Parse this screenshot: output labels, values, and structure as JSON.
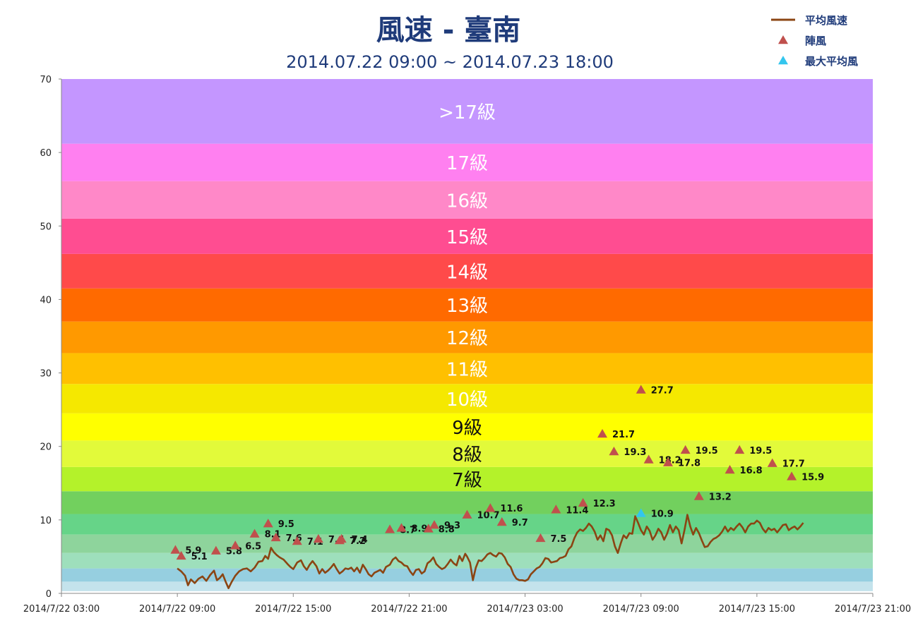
{
  "chart_data": {
    "type": "line",
    "title": "風速 - 臺南",
    "subtitle": "2014.07.22 09:00 ~ 2014.07.23 18:00",
    "xlabel": "",
    "ylabel": "",
    "ylim": [
      0,
      70
    ],
    "y_ticks": [
      0,
      10,
      20,
      30,
      40,
      50,
      60,
      70
    ],
    "x_range_hours": [
      0,
      42
    ],
    "x_ticks": [
      {
        "h": 0,
        "label": "2014/7/22 03:00"
      },
      {
        "h": 6,
        "label": "2014/7/22 09:00"
      },
      {
        "h": 12,
        "label": "2014/7/22 15:00"
      },
      {
        "h": 18,
        "label": "2014/7/22 21:00"
      },
      {
        "h": 24,
        "label": "2014/7/23 03:00"
      },
      {
        "h": 30,
        "label": "2014/7/23 09:00"
      },
      {
        "h": 36,
        "label": "2014/7/23 15:00"
      },
      {
        "h": 42,
        "label": "2014/7/23 21:00"
      }
    ],
    "bands": [
      {
        "from": 0,
        "to": 0.3,
        "color": "#ffffff",
        "label": ""
      },
      {
        "from": 0.3,
        "to": 1.6,
        "color": "#c4e3ec",
        "label": ""
      },
      {
        "from": 1.6,
        "to": 3.4,
        "color": "#96cfe0",
        "label": ""
      },
      {
        "from": 3.4,
        "to": 5.5,
        "color": "#9edfbc",
        "label": ""
      },
      {
        "from": 5.5,
        "to": 8.0,
        "color": "#8ed49c",
        "label": ""
      },
      {
        "from": 8.0,
        "to": 10.8,
        "color": "#66d488",
        "label": ""
      },
      {
        "from": 10.8,
        "to": 13.9,
        "color": "#72d05e",
        "label": ""
      },
      {
        "from": 13.9,
        "to": 17.2,
        "color": "#b4f22a",
        "label": "7級",
        "text_color": "#111111"
      },
      {
        "from": 17.2,
        "to": 20.8,
        "color": "#e2fa3a",
        "label": "8級",
        "text_color": "#111111"
      },
      {
        "from": 20.8,
        "to": 24.5,
        "color": "#ffff00",
        "label": "9級",
        "text_color": "#111111"
      },
      {
        "from": 24.5,
        "to": 28.5,
        "color": "#f5e800",
        "label": "10級",
        "text_color": "#ffffff"
      },
      {
        "from": 28.5,
        "to": 32.7,
        "color": "#ffc000",
        "label": "11級",
        "text_color": "#ffffff"
      },
      {
        "from": 32.7,
        "to": 37.0,
        "color": "#ff9900",
        "label": "12級",
        "text_color": "#ffffff"
      },
      {
        "from": 37.0,
        "to": 41.5,
        "color": "#ff6a00",
        "label": "13級",
        "text_color": "#ffffff"
      },
      {
        "from": 41.5,
        "to": 46.2,
        "color": "#ff4a4a",
        "label": "14級",
        "text_color": "#ffffff"
      },
      {
        "from": 46.2,
        "to": 51.0,
        "color": "#ff4d91",
        "label": "15級",
        "text_color": "#ffffff"
      },
      {
        "from": 51.0,
        "to": 56.1,
        "color": "#ff88c8",
        "label": "16級",
        "text_color": "#ffffff"
      },
      {
        "from": 56.1,
        "to": 61.2,
        "color": "#ff80f0",
        "label": "17級",
        "text_color": "#ffffff"
      },
      {
        "from": 61.2,
        "to": 70,
        "color": "#c496ff",
        "label": ">17級",
        "text_color": "#ffffff"
      }
    ],
    "legend": {
      "placement": "top-right",
      "entries": [
        {
          "name": "平均風速",
          "color": "#8b4513",
          "marker": "line"
        },
        {
          "name": "陣風",
          "color": "#c0504d",
          "marker": "triangle"
        },
        {
          "name": "最大平均風",
          "color": "#33c6ee",
          "marker": "triangle"
        }
      ]
    },
    "series": [
      {
        "name": "平均風速",
        "color": "#8b4513",
        "points": [
          [
            6.0,
            3.4
          ],
          [
            6.2,
            3.0
          ],
          [
            6.4,
            2.4
          ],
          [
            6.55,
            1.1
          ],
          [
            6.7,
            1.9
          ],
          [
            6.9,
            1.4
          ],
          [
            7.1,
            2.0
          ],
          [
            7.3,
            2.3
          ],
          [
            7.5,
            1.7
          ],
          [
            7.7,
            2.5
          ],
          [
            7.9,
            3.1
          ],
          [
            8.05,
            1.8
          ],
          [
            8.2,
            2.1
          ],
          [
            8.35,
            2.6
          ],
          [
            8.5,
            1.6
          ],
          [
            8.65,
            0.7
          ],
          [
            8.8,
            1.5
          ],
          [
            9.0,
            2.4
          ],
          [
            9.2,
            3.0
          ],
          [
            9.4,
            3.3
          ],
          [
            9.6,
            3.4
          ],
          [
            9.8,
            3.0
          ],
          [
            10.0,
            3.5
          ],
          [
            10.2,
            4.3
          ],
          [
            10.4,
            4.4
          ],
          [
            10.55,
            5.1
          ],
          [
            10.7,
            4.7
          ],
          [
            10.85,
            6.2
          ],
          [
            11.0,
            5.6
          ],
          [
            11.15,
            5.2
          ],
          [
            11.3,
            4.9
          ],
          [
            11.5,
            4.6
          ],
          [
            11.7,
            4.0
          ],
          [
            11.85,
            3.6
          ],
          [
            12.0,
            3.3
          ],
          [
            12.2,
            4.2
          ],
          [
            12.4,
            4.5
          ],
          [
            12.55,
            3.7
          ],
          [
            12.7,
            3.2
          ],
          [
            12.85,
            3.9
          ],
          [
            13.0,
            4.4
          ],
          [
            13.2,
            3.7
          ],
          [
            13.35,
            2.7
          ],
          [
            13.5,
            3.3
          ],
          [
            13.65,
            2.8
          ],
          [
            13.8,
            3.1
          ],
          [
            13.95,
            3.5
          ],
          [
            14.1,
            4.0
          ],
          [
            14.25,
            3.3
          ],
          [
            14.4,
            2.7
          ],
          [
            14.55,
            3.0
          ],
          [
            14.7,
            3.4
          ],
          [
            14.85,
            3.3
          ],
          [
            15.0,
            3.5
          ],
          [
            15.15,
            3.0
          ],
          [
            15.3,
            3.5
          ],
          [
            15.45,
            2.8
          ],
          [
            15.6,
            3.9
          ],
          [
            15.75,
            3.3
          ],
          [
            15.9,
            2.6
          ],
          [
            16.05,
            2.3
          ],
          [
            16.2,
            2.8
          ],
          [
            16.35,
            3.0
          ],
          [
            16.5,
            3.2
          ],
          [
            16.65,
            2.8
          ],
          [
            16.8,
            3.6
          ],
          [
            17.0,
            3.9
          ],
          [
            17.15,
            4.6
          ],
          [
            17.3,
            4.9
          ],
          [
            17.45,
            4.4
          ],
          [
            17.6,
            4.2
          ],
          [
            17.75,
            3.8
          ],
          [
            17.9,
            3.7
          ],
          [
            18.05,
            3.0
          ],
          [
            18.2,
            2.5
          ],
          [
            18.35,
            3.2
          ],
          [
            18.5,
            3.3
          ],
          [
            18.65,
            2.7
          ],
          [
            18.8,
            3.0
          ],
          [
            18.95,
            4.1
          ],
          [
            19.1,
            4.4
          ],
          [
            19.25,
            4.9
          ],
          [
            19.4,
            4.0
          ],
          [
            19.55,
            3.6
          ],
          [
            19.7,
            3.3
          ],
          [
            19.85,
            3.5
          ],
          [
            20.0,
            4.0
          ],
          [
            20.15,
            4.6
          ],
          [
            20.3,
            4.1
          ],
          [
            20.45,
            3.8
          ],
          [
            20.6,
            5.1
          ],
          [
            20.75,
            4.4
          ],
          [
            20.9,
            5.4
          ],
          [
            21.0,
            5.0
          ],
          [
            21.15,
            4.2
          ],
          [
            21.3,
            1.8
          ],
          [
            21.45,
            3.5
          ],
          [
            21.6,
            4.5
          ],
          [
            21.75,
            4.4
          ],
          [
            21.9,
            4.8
          ],
          [
            22.05,
            5.3
          ],
          [
            22.2,
            5.5
          ],
          [
            22.35,
            5.2
          ],
          [
            22.5,
            5.0
          ],
          [
            22.65,
            5.5
          ],
          [
            22.8,
            5.4
          ],
          [
            22.95,
            4.9
          ],
          [
            23.1,
            4.0
          ],
          [
            23.25,
            3.6
          ],
          [
            23.4,
            2.6
          ],
          [
            23.55,
            2.0
          ],
          [
            23.7,
            1.8
          ],
          [
            23.85,
            1.8
          ],
          [
            24.0,
            1.7
          ],
          [
            24.15,
            1.9
          ],
          [
            24.3,
            2.6
          ],
          [
            24.45,
            3.0
          ],
          [
            24.6,
            3.4
          ],
          [
            24.75,
            3.6
          ],
          [
            24.9,
            4.1
          ],
          [
            25.05,
            4.8
          ],
          [
            25.2,
            4.7
          ],
          [
            25.35,
            4.2
          ],
          [
            25.5,
            4.3
          ],
          [
            25.65,
            4.4
          ],
          [
            25.8,
            4.8
          ],
          [
            25.95,
            4.9
          ],
          [
            26.1,
            5.1
          ],
          [
            26.25,
            6.0
          ],
          [
            26.4,
            6.4
          ],
          [
            26.55,
            7.5
          ],
          [
            26.7,
            8.3
          ],
          [
            26.85,
            8.7
          ],
          [
            27.0,
            8.5
          ],
          [
            27.15,
            8.9
          ],
          [
            27.3,
            9.5
          ],
          [
            27.45,
            9.1
          ],
          [
            27.6,
            8.4
          ],
          [
            27.75,
            7.3
          ],
          [
            27.9,
            7.9
          ],
          [
            28.05,
            7.1
          ],
          [
            28.2,
            8.8
          ],
          [
            28.35,
            8.6
          ],
          [
            28.5,
            7.9
          ],
          [
            28.65,
            6.4
          ],
          [
            28.8,
            5.5
          ],
          [
            28.95,
            6.8
          ],
          [
            29.1,
            7.9
          ],
          [
            29.25,
            7.5
          ],
          [
            29.4,
            8.2
          ],
          [
            29.55,
            8.1
          ],
          [
            29.7,
            10.5
          ],
          [
            29.85,
            9.6
          ],
          [
            30.0,
            8.6
          ],
          [
            30.15,
            8.0
          ],
          [
            30.3,
            9.1
          ],
          [
            30.45,
            8.5
          ],
          [
            30.6,
            7.3
          ],
          [
            30.75,
            7.9
          ],
          [
            30.9,
            8.8
          ],
          [
            31.05,
            8.3
          ],
          [
            31.2,
            7.3
          ],
          [
            31.35,
            8.1
          ],
          [
            31.5,
            9.3
          ],
          [
            31.65,
            8.3
          ],
          [
            31.8,
            9.1
          ],
          [
            31.95,
            8.6
          ],
          [
            32.1,
            6.8
          ],
          [
            32.25,
            8.6
          ],
          [
            32.4,
            10.7
          ],
          [
            32.55,
            9.1
          ],
          [
            32.7,
            8.0
          ],
          [
            32.85,
            8.9
          ],
          [
            33.0,
            8.2
          ],
          [
            33.15,
            7.2
          ],
          [
            33.3,
            6.3
          ],
          [
            33.45,
            6.4
          ],
          [
            33.6,
            7.0
          ],
          [
            33.75,
            7.4
          ],
          [
            33.9,
            7.6
          ],
          [
            34.05,
            7.9
          ],
          [
            34.2,
            8.4
          ],
          [
            34.35,
            9.1
          ],
          [
            34.5,
            8.4
          ],
          [
            34.65,
            8.9
          ],
          [
            34.8,
            8.6
          ],
          [
            34.95,
            9.1
          ],
          [
            35.1,
            9.5
          ],
          [
            35.25,
            9.0
          ],
          [
            35.4,
            8.3
          ],
          [
            35.55,
            9.1
          ],
          [
            35.7,
            9.5
          ],
          [
            35.85,
            9.5
          ],
          [
            36.0,
            9.9
          ],
          [
            36.15,
            9.6
          ],
          [
            36.3,
            8.8
          ],
          [
            36.45,
            8.3
          ],
          [
            36.6,
            8.9
          ],
          [
            36.75,
            8.6
          ],
          [
            36.9,
            8.8
          ],
          [
            37.05,
            8.3
          ],
          [
            37.2,
            8.8
          ],
          [
            37.35,
            9.3
          ],
          [
            37.5,
            9.4
          ],
          [
            37.65,
            8.6
          ],
          [
            37.8,
            8.9
          ],
          [
            37.95,
            9.1
          ],
          [
            38.1,
            8.7
          ],
          [
            38.25,
            9.1
          ],
          [
            38.4,
            9.6
          ]
        ]
      },
      {
        "name": "陣風",
        "color": "#c0504d",
        "points": [
          {
            "h": 5.9,
            "v": 5.9,
            "label": "5.9"
          },
          {
            "h": 6.2,
            "v": 5.1,
            "label": "5.1"
          },
          {
            "h": 8.0,
            "v": 5.8,
            "label": "5.8"
          },
          {
            "h": 9.0,
            "v": 6.5,
            "label": "6.5"
          },
          {
            "h": 10.0,
            "v": 8.1,
            "label": "8.1"
          },
          {
            "h": 10.7,
            "v": 9.5,
            "label": "9.5"
          },
          {
            "h": 11.1,
            "v": 7.6,
            "label": "7.6"
          },
          {
            "h": 12.2,
            "v": 7.1,
            "label": "7.1"
          },
          {
            "h": 13.3,
            "v": 7.4,
            "label": "7.4"
          },
          {
            "h": 14.5,
            "v": 7.4,
            "label": "7.4"
          },
          {
            "h": 14.4,
            "v": 7.2,
            "label": "7.2"
          },
          {
            "h": 17.0,
            "v": 8.7,
            "label": "8.7"
          },
          {
            "h": 17.6,
            "v": 8.9,
            "label": "8.9"
          },
          {
            "h": 19.0,
            "v": 8.8,
            "label": "8.8"
          },
          {
            "h": 19.3,
            "v": 9.3,
            "label": "9.3"
          },
          {
            "h": 21.0,
            "v": 10.7,
            "label": "10.7"
          },
          {
            "h": 22.2,
            "v": 11.6,
            "label": "11.6"
          },
          {
            "h": 22.8,
            "v": 9.7,
            "label": "9.7"
          },
          {
            "h": 24.8,
            "v": 7.5,
            "label": "7.5"
          },
          {
            "h": 25.6,
            "v": 11.4,
            "label": "11.4"
          },
          {
            "h": 27.0,
            "v": 12.3,
            "label": "12.3"
          },
          {
            "h": 28.0,
            "v": 21.7,
            "label": "21.7"
          },
          {
            "h": 28.6,
            "v": 19.3,
            "label": "19.3"
          },
          {
            "h": 30.0,
            "v": 27.7,
            "label": "27.7"
          },
          {
            "h": 30.4,
            "v": 18.2,
            "label": "18.2"
          },
          {
            "h": 31.4,
            "v": 17.8,
            "label": "17.8"
          },
          {
            "h": 32.3,
            "v": 19.5,
            "label": "19.5"
          },
          {
            "h": 33.0,
            "v": 13.2,
            "label": "13.2"
          },
          {
            "h": 34.6,
            "v": 16.8,
            "label": "16.8"
          },
          {
            "h": 35.1,
            "v": 19.5,
            "label": "19.5"
          },
          {
            "h": 36.8,
            "v": 17.7,
            "label": "17.7"
          },
          {
            "h": 37.8,
            "v": 15.9,
            "label": "15.9"
          }
        ]
      },
      {
        "name": "最大平均風",
        "color": "#33c6ee",
        "points": [
          {
            "h": 30.0,
            "v": 10.9,
            "label": "10.9"
          }
        ]
      }
    ]
  }
}
